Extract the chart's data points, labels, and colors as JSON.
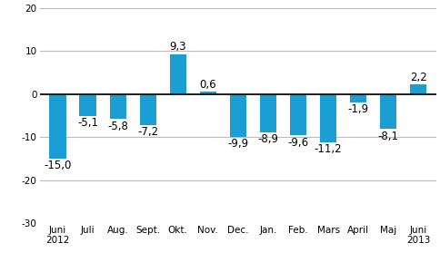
{
  "categories": [
    "Juni\n2012",
    "Juli",
    "Aug.",
    "Sept.",
    "Okt.",
    "Nov.",
    "Dec.",
    "Jan.",
    "Feb.",
    "Mars",
    "April",
    "Maj",
    "Juni\n2013"
  ],
  "values": [
    -15.0,
    -5.1,
    -5.8,
    -7.2,
    9.3,
    0.6,
    -9.9,
    -8.9,
    -9.6,
    -11.2,
    -1.9,
    -8.1,
    2.2
  ],
  "bar_color": "#1a9ed4",
  "ylim": [
    -30,
    20
  ],
  "yticks": [
    -30,
    -20,
    -10,
    0,
    10,
    20
  ],
  "background_color": "#ffffff",
  "grid_color": "#bbbbbb",
  "tick_fontsize": 7.5,
  "value_fontsize": 8.5,
  "bar_width": 0.55
}
